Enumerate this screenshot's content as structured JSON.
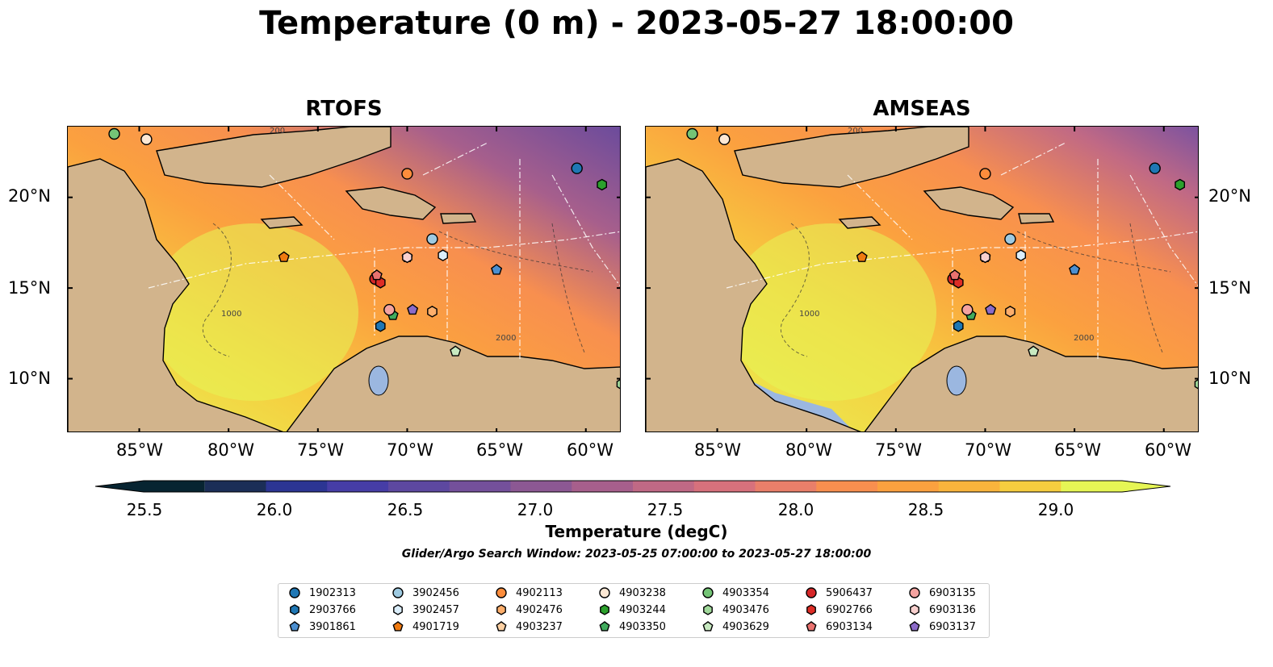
{
  "title": "Temperature (0 m) - 2023-05-27 18:00:00",
  "panels": [
    {
      "name": "RTOFS"
    },
    {
      "name": "AMSEAS"
    }
  ],
  "lon_ticks": [
    "85°W",
    "80°W",
    "75°W",
    "70°W",
    "65°W",
    "60°W"
  ],
  "lat_ticks": [
    "20°N",
    "15°N",
    "10°N"
  ],
  "colorbar": {
    "label": "Temperature (degC)",
    "ticks": [
      "25.5",
      "26.0",
      "26.5",
      "27.0",
      "27.5",
      "28.0",
      "28.5",
      "29.0"
    ],
    "min": 25.25,
    "max": 29.25,
    "colors": [
      "#072431",
      "#1b2e57",
      "#2c3593",
      "#463da6",
      "#5d48a0",
      "#74509b",
      "#8c5893",
      "#a75f8c",
      "#c06985",
      "#d7717c",
      "#e97f6a",
      "#f88f4f",
      "#fba13f",
      "#f9b43c",
      "#f6cd3f",
      "#e6f655"
    ]
  },
  "contour_labels": [
    "1000",
    "2000",
    "200"
  ],
  "note": "Glider/Argo Search Window: 2023-05-25 07:00:00 to 2023-05-27 18:00:00",
  "floats": [
    {
      "id": "1902313",
      "shape": "circle",
      "color": "#1f77b4",
      "lon": -60.5,
      "lat": 21.6
    },
    {
      "id": "2903766",
      "shape": "hexagon",
      "color": "#1f77b4",
      "lon": -71.5,
      "lat": 12.9
    },
    {
      "id": "3901861",
      "shape": "pentagon",
      "color": "#4c8fd0",
      "lon": -65.0,
      "lat": 16.0
    },
    {
      "id": "3902456",
      "shape": "circle",
      "color": "#9ecae1",
      "lon": -68.6,
      "lat": 17.7
    },
    {
      "id": "3902457",
      "shape": "hexagon",
      "color": "#dbeefb",
      "lon": -68.0,
      "lat": 16.8
    },
    {
      "id": "4901719",
      "shape": "pentagon",
      "color": "#f07a10",
      "lon": -76.9,
      "lat": 16.7
    },
    {
      "id": "4902113",
      "shape": "circle",
      "color": "#fd8d3c",
      "lon": -70.0,
      "lat": 21.3
    },
    {
      "id": "4902476",
      "shape": "hexagon",
      "color": "#fdae6b",
      "lon": -68.6,
      "lat": 13.7
    },
    {
      "id": "4903237",
      "shape": "pentagon",
      "color": "#fdd0a2",
      "lon": -70.0,
      "lat": 16.7
    },
    {
      "id": "4903238",
      "shape": "circle",
      "color": "#fde8d4",
      "lon": -84.6,
      "lat": 23.2
    },
    {
      "id": "4903244",
      "shape": "hexagon",
      "color": "#2ca02c",
      "lon": -59.1,
      "lat": 20.7
    },
    {
      "id": "4903350",
      "shape": "pentagon",
      "color": "#41ab5d",
      "lon": -70.8,
      "lat": 13.5
    },
    {
      "id": "4903354",
      "shape": "circle",
      "color": "#74c476",
      "lon": -86.4,
      "lat": 23.5
    },
    {
      "id": "4903476",
      "shape": "hexagon",
      "color": "#a1d99b",
      "lon": -58.0,
      "lat": 9.7
    },
    {
      "id": "4903629",
      "shape": "pentagon",
      "color": "#c7e9c0",
      "lon": -67.3,
      "lat": 11.5
    },
    {
      "id": "5906437",
      "shape": "circle",
      "color": "#d62728",
      "lon": -71.8,
      "lat": 15.5
    },
    {
      "id": "6902766",
      "shape": "hexagon",
      "color": "#de2d26",
      "lon": -71.5,
      "lat": 15.3
    },
    {
      "id": "6903134",
      "shape": "pentagon",
      "color": "#e9726f",
      "lon": -71.7,
      "lat": 15.7
    },
    {
      "id": "6903135",
      "shape": "circle",
      "color": "#f4a3a0",
      "lon": -71.0,
      "lat": 13.8
    },
    {
      "id": "6903136",
      "shape": "hexagon",
      "color": "#f8d0ce",
      "lon": -70.0,
      "lat": 16.7
    },
    {
      "id": "6903137",
      "shape": "pentagon",
      "color": "#8c6bc8",
      "lon": -69.7,
      "lat": 13.8
    }
  ]
}
